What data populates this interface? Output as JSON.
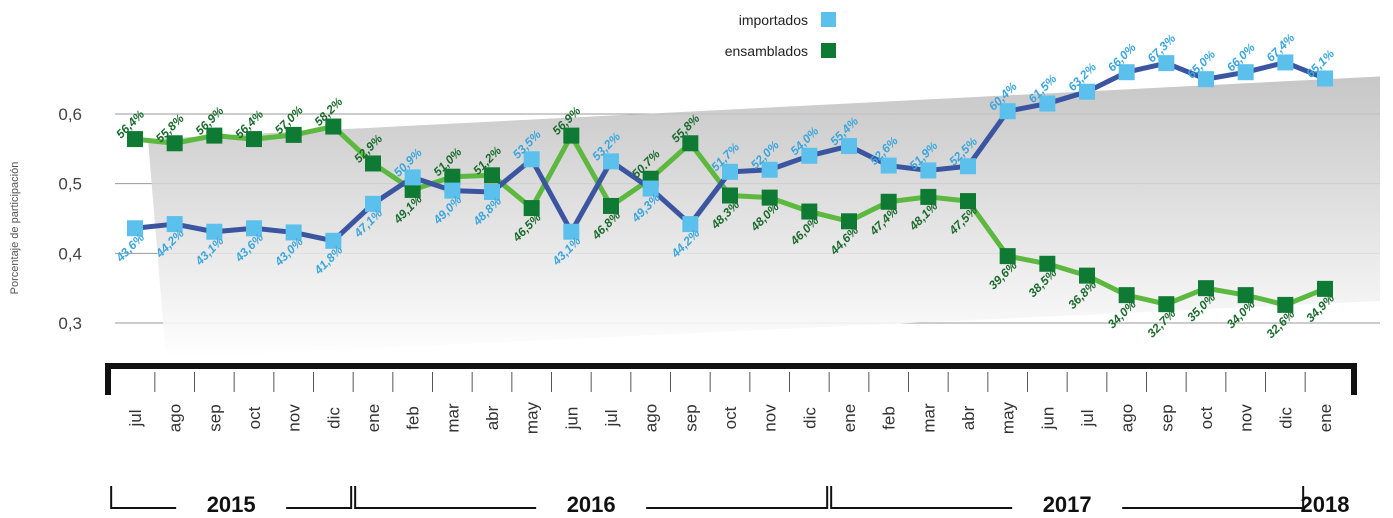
{
  "chart_data": {
    "type": "line",
    "ylabel": "Porcentaje de participación",
    "ylim": [
      0.25,
      0.65
    ],
    "yticks": [
      {
        "value": 0.3,
        "label": "0,3"
      },
      {
        "value": 0.4,
        "label": "0,4"
      },
      {
        "value": 0.5,
        "label": "0,5"
      },
      {
        "value": 0.6,
        "label": "0,6"
      }
    ],
    "grid": true,
    "legend_position": "top-center",
    "categories": [
      "jul",
      "ago",
      "sep",
      "oct",
      "nov",
      "dic",
      "ene",
      "feb",
      "mar",
      "abr",
      "may",
      "jun",
      "jul",
      "ago",
      "sep",
      "oct",
      "nov",
      "dic",
      "ene",
      "feb",
      "mar",
      "abr",
      "may",
      "jun",
      "jul",
      "ago",
      "sep",
      "oct",
      "nov",
      "dic",
      "ene"
    ],
    "years": [
      {
        "label": "2015",
        "start": 0,
        "end": 5
      },
      {
        "label": "2016",
        "start": 6,
        "end": 17
      },
      {
        "label": "2017",
        "start": 18,
        "end": 29
      },
      {
        "label": "2018",
        "start": 30,
        "end": 30
      }
    ],
    "series": [
      {
        "name": "importados",
        "color": "#5bc0eb",
        "line_color": "#3b55a0",
        "label_color": "#3aa6dd",
        "values": [
          0.436,
          0.442,
          0.431,
          0.436,
          0.43,
          0.418,
          0.471,
          0.509,
          0.49,
          0.488,
          0.535,
          0.431,
          0.532,
          0.493,
          0.442,
          0.517,
          0.52,
          0.54,
          0.554,
          0.526,
          0.519,
          0.525,
          0.604,
          0.615,
          0.632,
          0.66,
          0.673,
          0.65,
          0.66,
          0.674,
          0.651
        ],
        "labels": [
          "43,6%",
          "44,2%",
          "43,1%",
          "43,6%",
          "43,0%",
          "41,8%",
          "47,1%",
          "50,9%",
          "49,0%",
          "48,8%",
          "53,5%",
          "43,1%",
          "53,2%",
          "49,3%",
          "44,2%",
          "51,7%",
          "52,0%",
          "54,0%",
          "55,4%",
          "52,6%",
          "51,9%",
          "52,5%",
          "60,4%",
          "61,5%",
          "63,2%",
          "66,0%",
          "67,3%",
          "65,0%",
          "66,0%",
          "67,4%",
          "65,1%"
        ]
      },
      {
        "name": "ensamblados",
        "color": "#0e7a33",
        "line_color": "#5cb83f",
        "label_color": "#1a6b2c",
        "values": [
          0.564,
          0.558,
          0.569,
          0.564,
          0.57,
          0.582,
          0.529,
          0.491,
          0.51,
          0.512,
          0.465,
          0.569,
          0.468,
          0.507,
          0.558,
          0.483,
          0.48,
          0.46,
          0.446,
          0.474,
          0.481,
          0.475,
          0.396,
          0.385,
          0.368,
          0.34,
          0.327,
          0.35,
          0.34,
          0.326,
          0.349
        ],
        "labels": [
          "56,4%",
          "55,8%",
          "56,9%",
          "56,4%",
          "57,0%",
          "58,2%",
          "52,9%",
          "49,1%",
          "51,0%",
          "51,2%",
          "46,5%",
          "56,9%",
          "46,8%",
          "50.7%",
          "55,8%",
          "48,3%",
          "48,0%",
          "46,0%",
          "44,6%",
          "47,4%",
          "48,1%",
          "47,5%",
          "39,6%",
          "38,5%",
          "36,8%",
          "34,0%",
          "32,7%",
          "35,0%",
          "34,0%",
          "32,6%",
          "34,9%"
        ]
      }
    ]
  }
}
